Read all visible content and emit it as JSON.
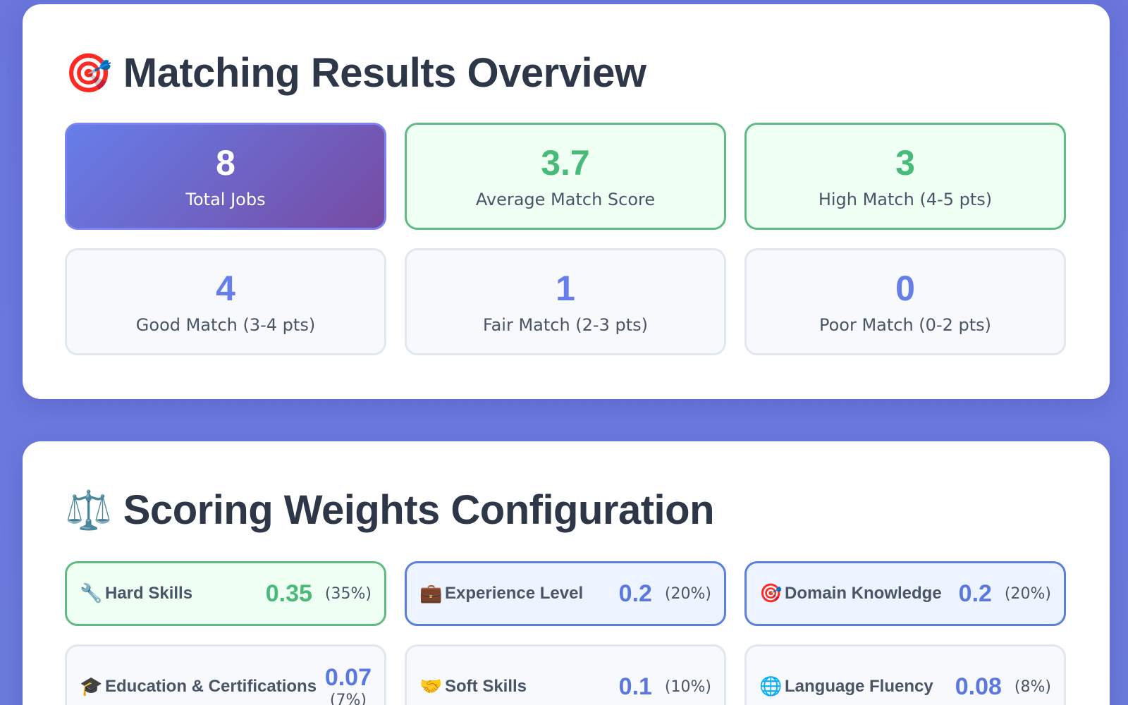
{
  "overview": {
    "icon": "target-icon",
    "icon_glyph": "🎯",
    "title": "Matching Results Overview",
    "stats": [
      {
        "value": "8",
        "label": "Total Jobs",
        "style": "primary"
      },
      {
        "value": "3.7",
        "label": "Average Match Score",
        "style": "success"
      },
      {
        "value": "3",
        "label": "High Match (4-5 pts)",
        "style": "success"
      },
      {
        "value": "4",
        "label": "Good Match (3-4 pts)",
        "style": "neutral"
      },
      {
        "value": "1",
        "label": "Fair Match (2-3 pts)",
        "style": "neutral"
      },
      {
        "value": "0",
        "label": "Poor Match (0-2 pts)",
        "style": "neutral"
      }
    ]
  },
  "weights": {
    "icon": "scales-icon",
    "icon_glyph": "⚖️",
    "title": "Scoring Weights Configuration",
    "items": [
      {
        "icon": "wrench-icon",
        "glyph": "🔧",
        "name": "Hard Skills",
        "value": "0.35",
        "pct": "(35%)",
        "level": "high"
      },
      {
        "icon": "briefcase-icon",
        "glyph": "💼",
        "name": "Experience Level",
        "value": "0.2",
        "pct": "(20%)",
        "level": "mid"
      },
      {
        "icon": "target-icon",
        "glyph": "🎯",
        "name": "Domain Knowledge",
        "value": "0.2",
        "pct": "(20%)",
        "level": "mid"
      },
      {
        "icon": "graduation-cap-icon",
        "glyph": "🎓",
        "name": "Education & Certifications",
        "value": "0.07",
        "pct": "(7%)",
        "level": "low"
      },
      {
        "icon": "handshake-icon",
        "glyph": "🤝",
        "name": "Soft Skills",
        "value": "0.1",
        "pct": "(10%)",
        "level": "low"
      },
      {
        "icon": "globe-icon",
        "glyph": "🌐",
        "name": "Language Fluency",
        "value": "0.08",
        "pct": "(8%)",
        "level": "low"
      }
    ]
  },
  "colors": {
    "background": "#6a76dc",
    "accent": "#667eea",
    "success": "#48bb78",
    "heading": "#2d3748"
  }
}
